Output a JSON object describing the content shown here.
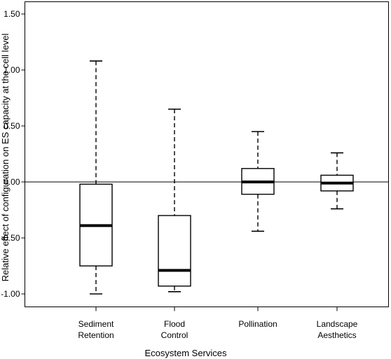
{
  "chart_data": {
    "type": "boxplot",
    "title": "",
    "xlabel": "Ecosystem Services",
    "ylabel": "Relative effect of configuration on ES capacity at the cell level",
    "ylim": [
      -1.1,
      1.6
    ],
    "yticks": [
      -1.0,
      -0.5,
      0.0,
      0.5,
      1.0,
      1.5
    ],
    "ytick_labels": [
      "-1.00",
      "-0.50",
      "0.00",
      "0.50",
      "1.00",
      "1.50"
    ],
    "reference_line_y": 0.0,
    "grid": false,
    "categories": [
      [
        "Sediment",
        "Retention"
      ],
      [
        "Flood",
        "Control"
      ],
      [
        "Pollination"
      ],
      [
        "Landscape",
        "Aesthetics"
      ]
    ],
    "boxes": [
      {
        "whisker_low": -1.0,
        "q1": -0.75,
        "median": -0.39,
        "q3": -0.02,
        "whisker_high": 1.08
      },
      {
        "whisker_low": -0.98,
        "q1": -0.93,
        "median": -0.79,
        "q3": -0.3,
        "whisker_high": 0.65
      },
      {
        "whisker_low": -0.44,
        "q1": -0.11,
        "median": 0.0,
        "q3": 0.12,
        "whisker_high": 0.45
      },
      {
        "whisker_low": -0.24,
        "q1": -0.08,
        "median": -0.01,
        "q3": 0.06,
        "whisker_high": 0.26
      }
    ]
  }
}
